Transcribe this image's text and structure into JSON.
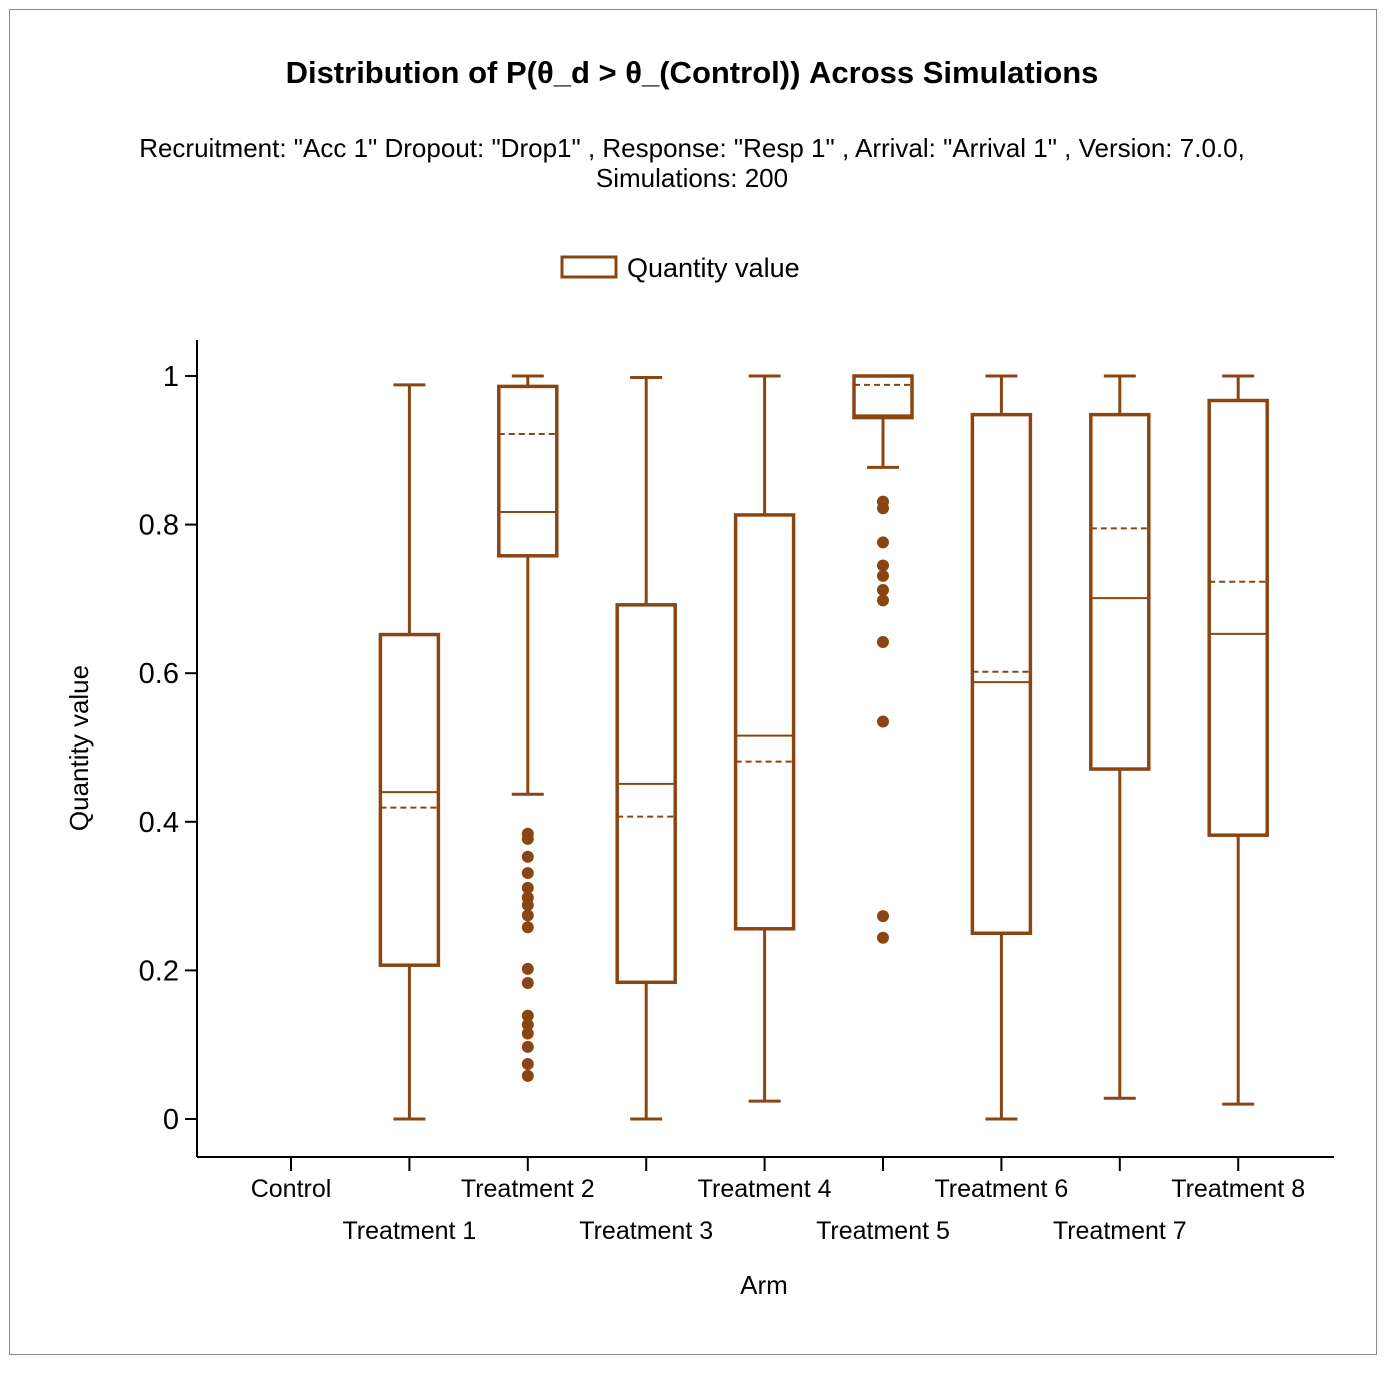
{
  "chart_data": {
    "type": "box",
    "title": "Distribution of P(θ_d > θ_(Control)) Across Simulations",
    "subtitle_line1": "Recruitment: \"Acc 1\" Dropout: \"Drop1\" , Response: \"Resp 1\" , Arrival: \"Arrival 1\" , Version: 7.0.0,",
    "subtitle_line2": "Simulations: 200",
    "legend": {
      "label": "Quantity value",
      "position": "top-center"
    },
    "xlabel": "Arm",
    "ylabel": "Quantity value",
    "ylim": [
      -0.05,
      1.05
    ],
    "yticks": [
      {
        "value": 0,
        "label": "0"
      },
      {
        "value": 0.2,
        "label": "0.2"
      },
      {
        "value": 0.4,
        "label": "0.4"
      },
      {
        "value": 0.6,
        "label": "0.6"
      },
      {
        "value": 0.8,
        "label": "0.8"
      },
      {
        "value": 1,
        "label": "1"
      }
    ],
    "color": "#8B4513",
    "categories": [
      "Control",
      "Treatment 1",
      "Treatment 2",
      "Treatment 3",
      "Treatment 4",
      "Treatment 5",
      "Treatment 6",
      "Treatment 7",
      "Treatment 8"
    ],
    "boxes": [
      null,
      {
        "whisker_low": 0.0,
        "q1": 0.207,
        "median": 0.44,
        "mean": 0.419,
        "q3": 0.652,
        "whisker_high": 0.988,
        "outliers": []
      },
      {
        "whisker_low": 0.437,
        "q1": 0.758,
        "median": 0.817,
        "mean": 0.922,
        "q3": 0.986,
        "whisker_high": 1.0,
        "outliers": [
          0.384,
          0.377,
          0.353,
          0.331,
          0.311,
          0.298,
          0.288,
          0.274,
          0.258,
          0.202,
          0.183,
          0.139,
          0.127,
          0.115,
          0.097,
          0.074,
          0.058
        ]
      },
      {
        "whisker_low": 0.0,
        "q1": 0.184,
        "median": 0.451,
        "mean": 0.407,
        "q3": 0.692,
        "whisker_high": 0.998,
        "outliers": []
      },
      {
        "whisker_low": 0.024,
        "q1": 0.256,
        "median": 0.516,
        "mean": 0.481,
        "q3": 0.813,
        "whisker_high": 1.0,
        "outliers": []
      },
      {
        "whisker_low": 0.877,
        "q1": 0.944,
        "median": 0.947,
        "mean": 0.988,
        "q3": 1.0,
        "whisker_high": 1.0,
        "outliers": [
          0.831,
          0.822,
          0.776,
          0.745,
          0.731,
          0.712,
          0.698,
          0.642,
          0.535,
          0.273,
          0.244
        ]
      },
      {
        "whisker_low": 0.0,
        "q1": 0.25,
        "median": 0.588,
        "mean": 0.602,
        "q3": 0.948,
        "whisker_high": 1.0,
        "outliers": []
      },
      {
        "whisker_low": 0.028,
        "q1": 0.471,
        "median": 0.701,
        "mean": 0.795,
        "q3": 0.948,
        "whisker_high": 1.0,
        "outliers": []
      },
      {
        "whisker_low": 0.02,
        "q1": 0.382,
        "median": 0.653,
        "mean": 0.723,
        "q3": 0.967,
        "whisker_high": 1.0,
        "outliers": []
      }
    ]
  }
}
